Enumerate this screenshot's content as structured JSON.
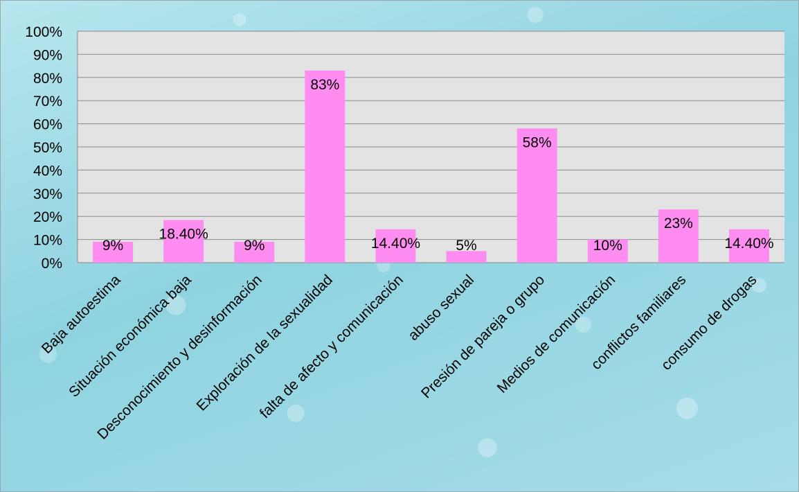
{
  "chart_data": {
    "type": "bar",
    "categories": [
      "Baja autoestima",
      "Situación económica baja",
      "Desconocimiento y desinformación",
      "Exploración de la sexualidad",
      "falta de afecto y comunicación",
      "abuso sexual",
      "Presión de pareja o grupo",
      "Medios de comunicación",
      "conflictos familiares",
      "consumo de drogas"
    ],
    "values": [
      9,
      18.4,
      9,
      83,
      14.4,
      5,
      58,
      10,
      23,
      14.4
    ],
    "data_labels": [
      "9%",
      "18.40%",
      "9%",
      "83%",
      "14.40%",
      "5%",
      "58%",
      "10%",
      "23%",
      "14.40%"
    ],
    "yticks": [
      "0%",
      "10%",
      "20%",
      "30%",
      "40%",
      "50%",
      "60%",
      "70%",
      "80%",
      "90%",
      "100%"
    ],
    "ylim": [
      0,
      100
    ],
    "grid": true,
    "bar_color": "#ff8cf0",
    "plot_background": "#e3e3e3",
    "gridline_color": "#8a8a8a"
  }
}
